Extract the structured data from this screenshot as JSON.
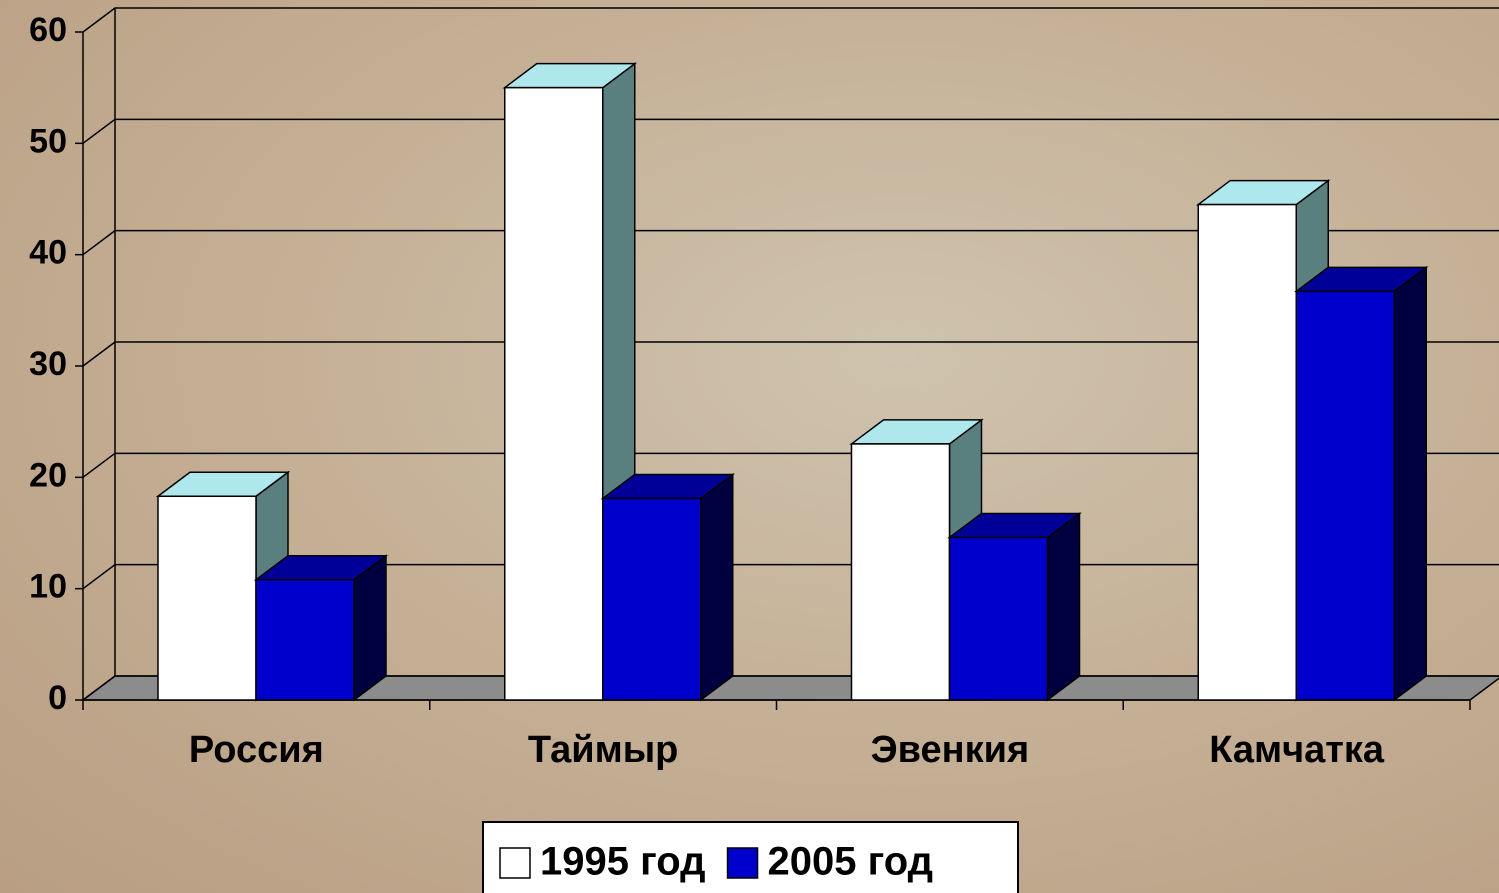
{
  "chart_data": {
    "type": "bar3d",
    "categories": [
      "Россия",
      "Таймыр",
      "Эвенкия",
      "Камчатка"
    ],
    "series": [
      {
        "name": "1995 год",
        "color": "#ffffff",
        "values": [
          18.3,
          55,
          23,
          44.5
        ]
      },
      {
        "name": "2005 год",
        "color": "#0000cc",
        "values": [
          10.8,
          18.1,
          14.6,
          36.7
        ]
      }
    ],
    "ylim": [
      0,
      60
    ],
    "yticks": [
      0,
      10,
      20,
      30,
      40,
      50,
      60
    ],
    "grid": true,
    "legend": "bottom"
  }
}
